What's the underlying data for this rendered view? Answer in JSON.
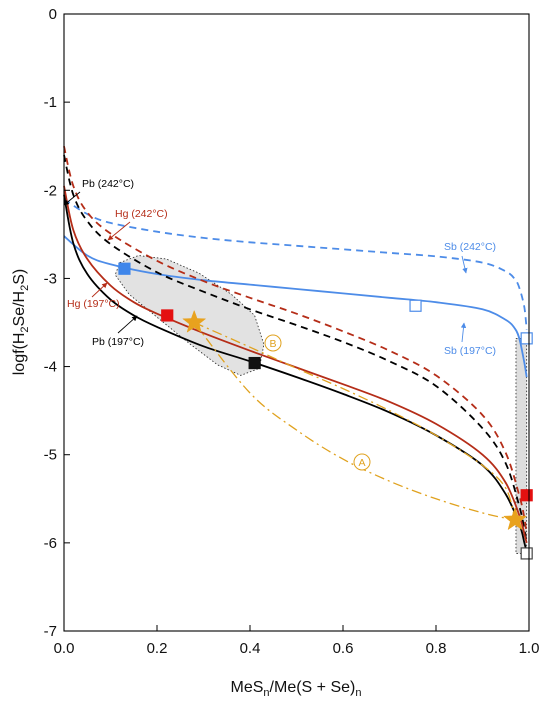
{
  "chart_data": {
    "type": "line",
    "xlabel": "MeSn/Me(S + Se)n",
    "ylabel": "logf(H2Se/H2S)",
    "xlim": [
      0,
      1
    ],
    "ylim": [
      -7,
      0
    ],
    "x_ticks": [
      "0.0",
      "0.2",
      "0.4",
      "0.6",
      "0.8",
      "1.0"
    ],
    "y_ticks": [
      "0",
      "-1",
      "-2",
      "-3",
      "-4",
      "-5",
      "-6",
      "-7"
    ],
    "grid": false,
    "colors": {
      "pb": "#000000",
      "hg": "#b52d18",
      "sb": "#4d8ce8",
      "path": "#e0a21f",
      "field": "#cfcfcf"
    },
    "series": [
      {
        "name": "Sb (242°C)",
        "style": "dashed",
        "x": [
          0,
          0.05,
          0.1,
          0.2,
          0.3,
          0.4,
          0.5,
          0.6,
          0.7,
          0.8,
          0.9,
          0.95,
          0.97,
          0.98,
          0.99,
          0.995
        ],
        "y": [
          -2.1,
          -2.27,
          -2.37,
          -2.47,
          -2.54,
          -2.59,
          -2.63,
          -2.67,
          -2.71,
          -2.75,
          -2.82,
          -2.92,
          -3.01,
          -3.12,
          -3.33,
          -3.58
        ]
      },
      {
        "name": "Sb (197°C)",
        "style": "solid",
        "x": [
          0,
          0.05,
          0.1,
          0.2,
          0.3,
          0.4,
          0.5,
          0.6,
          0.7,
          0.8,
          0.9,
          0.95,
          0.97,
          0.98,
          0.99,
          0.995
        ],
        "y": [
          -2.52,
          -2.74,
          -2.84,
          -2.95,
          -3.02,
          -3.07,
          -3.12,
          -3.17,
          -3.22,
          -3.27,
          -3.35,
          -3.47,
          -3.57,
          -3.7,
          -3.96,
          -4.12
        ]
      },
      {
        "name": "Pb (242°C)",
        "style": "dashed",
        "x": [
          0,
          0.02,
          0.05,
          0.1,
          0.2,
          0.3,
          0.4,
          0.5,
          0.6,
          0.7,
          0.8,
          0.9,
          0.95,
          0.98,
          0.99,
          0.995
        ],
        "y": [
          -1.6,
          -2.05,
          -2.35,
          -2.61,
          -2.93,
          -3.15,
          -3.35,
          -3.53,
          -3.72,
          -3.94,
          -4.22,
          -4.7,
          -5.1,
          -5.6,
          -5.85,
          -6.0
        ]
      },
      {
        "name": "Hg (242°C)",
        "style": "dashed",
        "x": [
          0,
          0.02,
          0.05,
          0.1,
          0.2,
          0.3,
          0.4,
          0.5,
          0.6,
          0.7,
          0.8,
          0.9,
          0.95,
          0.98,
          0.99,
          0.995
        ],
        "y": [
          -1.5,
          -1.95,
          -2.25,
          -2.49,
          -2.8,
          -3.03,
          -3.22,
          -3.4,
          -3.6,
          -3.82,
          -4.1,
          -4.55,
          -4.98,
          -5.48,
          -5.72,
          -5.9
        ]
      },
      {
        "name": "Hg (197°C)",
        "style": "solid",
        "x": [
          0,
          0.02,
          0.05,
          0.1,
          0.15,
          0.2,
          0.3,
          0.4,
          0.5,
          0.6,
          0.7,
          0.8,
          0.9,
          0.95,
          0.98,
          0.99,
          0.995
        ],
        "y": [
          -1.95,
          -2.45,
          -2.78,
          -3.08,
          -3.27,
          -3.4,
          -3.62,
          -3.82,
          -4.01,
          -4.2,
          -4.4,
          -4.65,
          -5.0,
          -5.32,
          -5.7,
          -5.9,
          -6.0
        ]
      },
      {
        "name": "Pb (197°C)",
        "style": "solid",
        "x": [
          0,
          0.02,
          0.05,
          0.1,
          0.15,
          0.2,
          0.3,
          0.4,
          0.5,
          0.6,
          0.7,
          0.8,
          0.9,
          0.95,
          0.98,
          0.99,
          0.995
        ],
        "y": [
          -2.05,
          -2.6,
          -2.95,
          -3.24,
          -3.42,
          -3.55,
          -3.77,
          -3.94,
          -4.12,
          -4.31,
          -4.52,
          -4.78,
          -5.12,
          -5.45,
          -5.8,
          -6.0,
          -6.1
        ]
      },
      {
        "name": "A",
        "style": "dashdot",
        "x": [
          0.28,
          0.4,
          0.5,
          0.6,
          0.7,
          0.8,
          0.9,
          0.95,
          0.97
        ],
        "y": [
          -3.5,
          -4.3,
          -4.72,
          -5.05,
          -5.3,
          -5.5,
          -5.66,
          -5.72,
          -5.74
        ]
      },
      {
        "name": "B",
        "style": "dashdot",
        "x": [
          0.28,
          0.4,
          0.5,
          0.6,
          0.7,
          0.8,
          0.9,
          0.95,
          0.97
        ],
        "y": [
          -3.5,
          -3.78,
          -4.02,
          -4.25,
          -4.5,
          -4.78,
          -5.12,
          -5.38,
          -5.74
        ]
      }
    ],
    "points": [
      {
        "label": "",
        "x": 0.13,
        "y": -2.89,
        "marker": "square",
        "color": "#3f86ea",
        "fill": true
      },
      {
        "label": "",
        "x": 0.756,
        "y": -3.31,
        "marker": "square",
        "color": "#4d8ce8",
        "fill": false
      },
      {
        "label": "",
        "x": 0.995,
        "y": -3.68,
        "marker": "square",
        "color": "#4d8ce8",
        "fill": false
      },
      {
        "label": "",
        "x": 0.222,
        "y": -3.42,
        "marker": "square",
        "color": "#e41010",
        "fill": true
      },
      {
        "label": "",
        "x": 0.995,
        "y": -5.46,
        "marker": "square",
        "color": "#e41010",
        "fill": true
      },
      {
        "label": "",
        "x": 0.41,
        "y": -3.96,
        "marker": "square",
        "color": "#111111",
        "fill": true
      },
      {
        "label": "",
        "x": 0.995,
        "y": -6.12,
        "marker": "square",
        "color": "#444444",
        "fill": false
      },
      {
        "label": "",
        "x": 0.28,
        "y": -3.5,
        "marker": "star",
        "color": "#e8a21e",
        "fill": true
      },
      {
        "label": "",
        "x": 0.97,
        "y": -5.74,
        "marker": "star",
        "color": "#e8a21e",
        "fill": true
      }
    ],
    "annotations": {
      "pb242": "Pb (242°C)",
      "hg242": "Hg (242°C)",
      "hg197": "Hg (197°C)",
      "pb197": "Pb (197°C)",
      "sb242": "Sb (242°C)",
      "sb197": "Sb (197°C)",
      "a": "A",
      "b": "B"
    }
  }
}
